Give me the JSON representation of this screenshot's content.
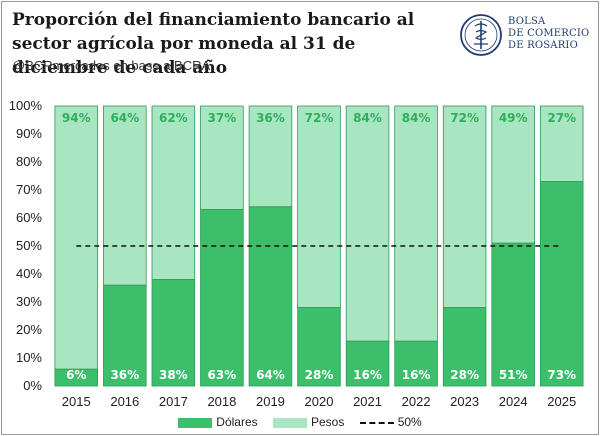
{
  "header": {
    "title": "Proporción del financiamiento bancario al sector agrícola por moneda al 31 de diciembre de cada año",
    "subtitle": "@BCRmercados en base a BCRA",
    "logo_lines": [
      "BOLSA",
      "DE COMERCIO",
      "DE ROSARIO"
    ]
  },
  "colors": {
    "dolares": "#3cbf6b",
    "pesos": "#a8e6c1",
    "bar_edge": "#2e9a55",
    "label": "#ffffff",
    "pesos_label": "#2fae5c",
    "reference": "#111111"
  },
  "chart_data": {
    "type": "bar",
    "stacked": true,
    "categories": [
      "2015",
      "2016",
      "2017",
      "2018",
      "2019",
      "2020",
      "2021",
      "2022",
      "2023",
      "2024",
      "2025"
    ],
    "series": [
      {
        "name": "Dólares",
        "values": [
          6,
          36,
          38,
          63,
          64,
          28,
          16,
          16,
          28,
          51,
          73
        ],
        "labels": [
          "6%",
          "36%",
          "38%",
          "63%",
          "64%",
          "28%",
          "16%",
          "16%",
          "28%",
          "51%",
          "73%"
        ]
      },
      {
        "name": "Pesos",
        "values": [
          94,
          64,
          62,
          37,
          36,
          72,
          84,
          84,
          72,
          49,
          27
        ],
        "labels": [
          "94%",
          "64%",
          "62%",
          "37%",
          "36%",
          "72%",
          "84%",
          "84%",
          "72%",
          "49%",
          "27%"
        ]
      }
    ],
    "reference_line": {
      "name": "50%",
      "value": 50
    },
    "y_ticks": [
      "0%",
      "10%",
      "20%",
      "30%",
      "40%",
      "50%",
      "60%",
      "70%",
      "80%",
      "90%",
      "100%"
    ],
    "ylim": [
      0,
      100
    ],
    "legend_position": "bottom"
  }
}
